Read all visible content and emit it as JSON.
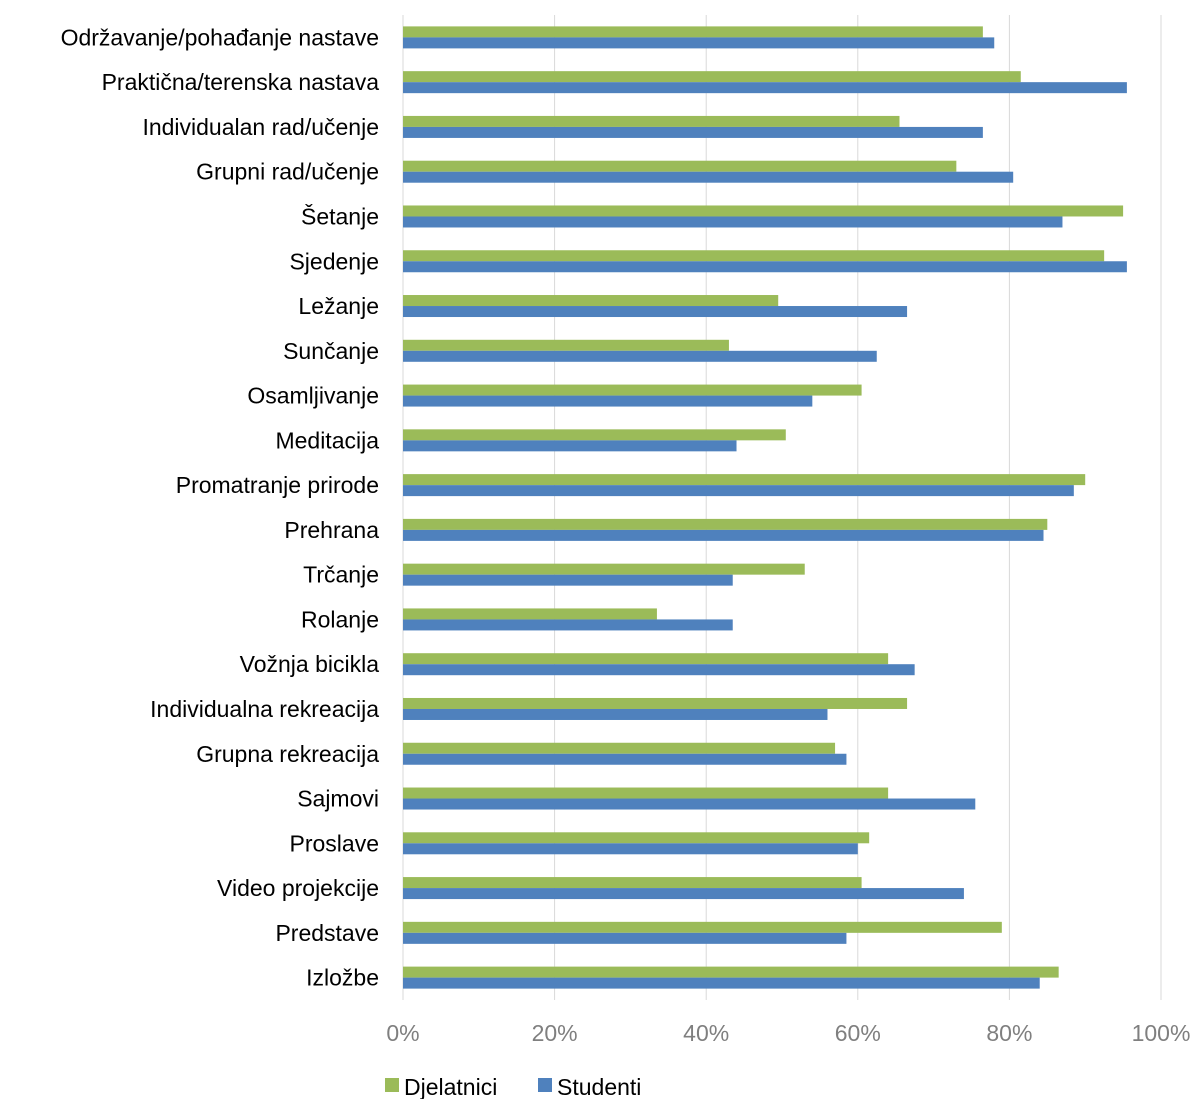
{
  "chart_data": {
    "type": "bar",
    "orientation": "horizontal",
    "categories": [
      "Održavanje/pohađanje nastave",
      "Praktična/terenska nastava",
      "Individualan rad/učenje",
      "Grupni rad/učenje",
      "Šetanje",
      "Sjedenje",
      "Ležanje",
      "Sunčanje",
      "Osamljivanje",
      "Meditacija",
      "Promatranje prirode",
      "Prehrana",
      "Trčanje",
      "Rolanje",
      "Vožnja bicikla",
      "Individualna rekreacija",
      "Grupna rekreacija",
      "Sajmovi",
      "Proslave",
      "Video projekcije",
      "Predstave",
      "Izložbe"
    ],
    "series": [
      {
        "name": "Djelatnici",
        "color": "#9bbb59",
        "values": [
          76.5,
          81.5,
          65.5,
          73.0,
          95.0,
          92.5,
          49.5,
          43.0,
          60.5,
          50.5,
          90.0,
          85.0,
          53.0,
          33.5,
          64.0,
          66.5,
          57.0,
          64.0,
          61.5,
          60.5,
          79.0,
          86.5
        ]
      },
      {
        "name": "Studenti",
        "color": "#4f81bd",
        "values": [
          78.0,
          95.5,
          76.5,
          80.5,
          87.0,
          95.5,
          66.5,
          62.5,
          54.0,
          44.0,
          88.5,
          84.5,
          43.5,
          43.5,
          67.5,
          56.0,
          58.5,
          75.5,
          60.0,
          74.0,
          58.5,
          84.0
        ]
      }
    ],
    "xlim": [
      0,
      100
    ],
    "ticks": [
      "0%",
      "20%",
      "40%",
      "60%",
      "80%",
      "100%"
    ],
    "tick_values": [
      0,
      20,
      40,
      60,
      80,
      100
    ],
    "grid": true,
    "legend": "bottom",
    "title": "",
    "xlabel": "",
    "ylabel": ""
  },
  "legend": {
    "items": [
      {
        "label": "Djelatnici",
        "color": "#9bbb59"
      },
      {
        "label": "Studenti",
        "color": "#4f81bd"
      }
    ]
  }
}
